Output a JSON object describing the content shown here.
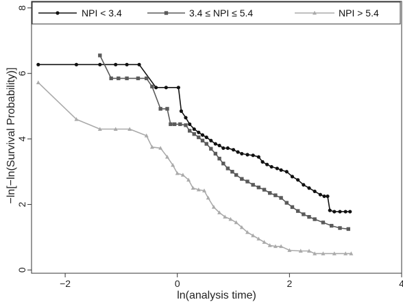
{
  "chart_data": {
    "type": "line",
    "xlabel": "ln(analysis time)",
    "ylabel": "−ln[−ln(Survival Probability)]",
    "xlim": [
      -2.6,
      4.0
    ],
    "ylim": [
      -0.1,
      8.2
    ],
    "xticks": [
      -2,
      0,
      2,
      4
    ],
    "xtick_labels": [
      "−2",
      "0",
      "2",
      "4"
    ],
    "yticks": [
      0,
      2,
      4,
      6,
      8
    ],
    "ytick_labels": [
      "0",
      "2",
      "4",
      "6",
      "8"
    ],
    "grid": false,
    "legend_position": "top",
    "series": [
      {
        "name": "NPI < 3.4",
        "color": "#111111",
        "marker": "circle",
        "points": [
          [
            -2.48,
            6.27
          ],
          [
            -1.8,
            6.27
          ],
          [
            -1.38,
            6.27
          ],
          [
            -1.1,
            6.27
          ],
          [
            -0.9,
            6.27
          ],
          [
            -0.68,
            6.27
          ],
          [
            -0.38,
            5.57
          ],
          [
            -0.2,
            5.57
          ],
          [
            0.02,
            5.57
          ],
          [
            0.07,
            4.85
          ],
          [
            0.15,
            4.65
          ],
          [
            0.22,
            4.45
          ],
          [
            0.3,
            4.3
          ],
          [
            0.38,
            4.2
          ],
          [
            0.45,
            4.12
          ],
          [
            0.52,
            4.05
          ],
          [
            0.6,
            3.95
          ],
          [
            0.68,
            3.85
          ],
          [
            0.75,
            3.8
          ],
          [
            0.82,
            3.72
          ],
          [
            0.9,
            3.72
          ],
          [
            1.0,
            3.67
          ],
          [
            1.08,
            3.6
          ],
          [
            1.15,
            3.55
          ],
          [
            1.25,
            3.52
          ],
          [
            1.35,
            3.5
          ],
          [
            1.45,
            3.45
          ],
          [
            1.52,
            3.3
          ],
          [
            1.6,
            3.22
          ],
          [
            1.68,
            3.15
          ],
          [
            1.78,
            3.1
          ],
          [
            1.85,
            3.05
          ],
          [
            1.95,
            3.0
          ],
          [
            2.05,
            2.85
          ],
          [
            2.15,
            2.75
          ],
          [
            2.25,
            2.6
          ],
          [
            2.35,
            2.5
          ],
          [
            2.45,
            2.4
          ],
          [
            2.55,
            2.3
          ],
          [
            2.62,
            2.25
          ],
          [
            2.68,
            2.25
          ],
          [
            2.72,
            1.82
          ],
          [
            2.8,
            1.78
          ],
          [
            2.9,
            1.78
          ],
          [
            3.0,
            1.78
          ],
          [
            3.08,
            1.78
          ]
        ]
      },
      {
        "name": "3.4 ≤ NPI ≤ 5.4",
        "color": "#5a5a5a",
        "marker": "square",
        "points": [
          [
            -1.38,
            6.55
          ],
          [
            -1.18,
            5.85
          ],
          [
            -1.05,
            5.85
          ],
          [
            -0.9,
            5.85
          ],
          [
            -0.7,
            5.85
          ],
          [
            -0.55,
            5.85
          ],
          [
            -0.45,
            5.6
          ],
          [
            -0.3,
            4.92
          ],
          [
            -0.18,
            4.92
          ],
          [
            -0.12,
            4.45
          ],
          [
            -0.05,
            4.45
          ],
          [
            0.05,
            4.45
          ],
          [
            0.15,
            4.42
          ],
          [
            0.22,
            4.25
          ],
          [
            0.3,
            4.15
          ],
          [
            0.38,
            4.05
          ],
          [
            0.45,
            3.95
          ],
          [
            0.52,
            3.85
          ],
          [
            0.6,
            3.7
          ],
          [
            0.68,
            3.55
          ],
          [
            0.75,
            3.4
          ],
          [
            0.82,
            3.25
          ],
          [
            0.9,
            3.1
          ],
          [
            0.98,
            3.0
          ],
          [
            1.05,
            2.9
          ],
          [
            1.15,
            2.78
          ],
          [
            1.25,
            2.7
          ],
          [
            1.35,
            2.6
          ],
          [
            1.45,
            2.52
          ],
          [
            1.55,
            2.45
          ],
          [
            1.65,
            2.35
          ],
          [
            1.75,
            2.28
          ],
          [
            1.85,
            2.2
          ],
          [
            1.95,
            2.05
          ],
          [
            2.05,
            1.92
          ],
          [
            2.15,
            1.8
          ],
          [
            2.25,
            1.7
          ],
          [
            2.35,
            1.62
          ],
          [
            2.45,
            1.55
          ],
          [
            2.6,
            1.45
          ],
          [
            2.75,
            1.35
          ],
          [
            2.9,
            1.28
          ],
          [
            3.05,
            1.25
          ]
        ]
      },
      {
        "name": "NPI > 5.4",
        "color": "#aaaaaa",
        "marker": "triangle",
        "points": [
          [
            -2.48,
            5.72
          ],
          [
            -1.8,
            4.6
          ],
          [
            -1.38,
            4.3
          ],
          [
            -1.1,
            4.3
          ],
          [
            -0.85,
            4.3
          ],
          [
            -0.55,
            4.1
          ],
          [
            -0.45,
            3.75
          ],
          [
            -0.3,
            3.72
          ],
          [
            -0.18,
            3.45
          ],
          [
            -0.08,
            3.2
          ],
          [
            0.0,
            2.95
          ],
          [
            0.1,
            2.9
          ],
          [
            0.2,
            2.75
          ],
          [
            0.28,
            2.5
          ],
          [
            0.38,
            2.45
          ],
          [
            0.48,
            2.42
          ],
          [
            0.55,
            2.2
          ],
          [
            0.65,
            1.92
          ],
          [
            0.75,
            1.75
          ],
          [
            0.85,
            1.62
          ],
          [
            0.95,
            1.55
          ],
          [
            1.05,
            1.45
          ],
          [
            1.15,
            1.3
          ],
          [
            1.25,
            1.15
          ],
          [
            1.35,
            1.05
          ],
          [
            1.45,
            0.95
          ],
          [
            1.55,
            0.85
          ],
          [
            1.65,
            0.75
          ],
          [
            1.75,
            0.72
          ],
          [
            1.85,
            0.72
          ],
          [
            2.0,
            0.6
          ],
          [
            2.2,
            0.58
          ],
          [
            2.35,
            0.58
          ],
          [
            2.45,
            0.5
          ],
          [
            2.6,
            0.5
          ],
          [
            2.8,
            0.5
          ],
          [
            3.0,
            0.5
          ],
          [
            3.1,
            0.5
          ]
        ]
      }
    ]
  }
}
